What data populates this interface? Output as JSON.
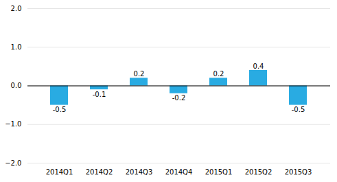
{
  "chart_data": {
    "type": "bar",
    "categories": [
      "2014Q1",
      "2014Q2",
      "2014Q3",
      "2014Q4",
      "2015Q1",
      "2015Q2",
      "2015Q3"
    ],
    "values": [
      -0.5,
      -0.1,
      0.2,
      -0.2,
      0.2,
      0.4,
      -0.5
    ],
    "color": "#29abe2",
    "ylim": [
      -2,
      2
    ],
    "yticks": [
      -2,
      -1,
      0,
      1,
      2
    ],
    "grid": true,
    "data_labels": true
  }
}
